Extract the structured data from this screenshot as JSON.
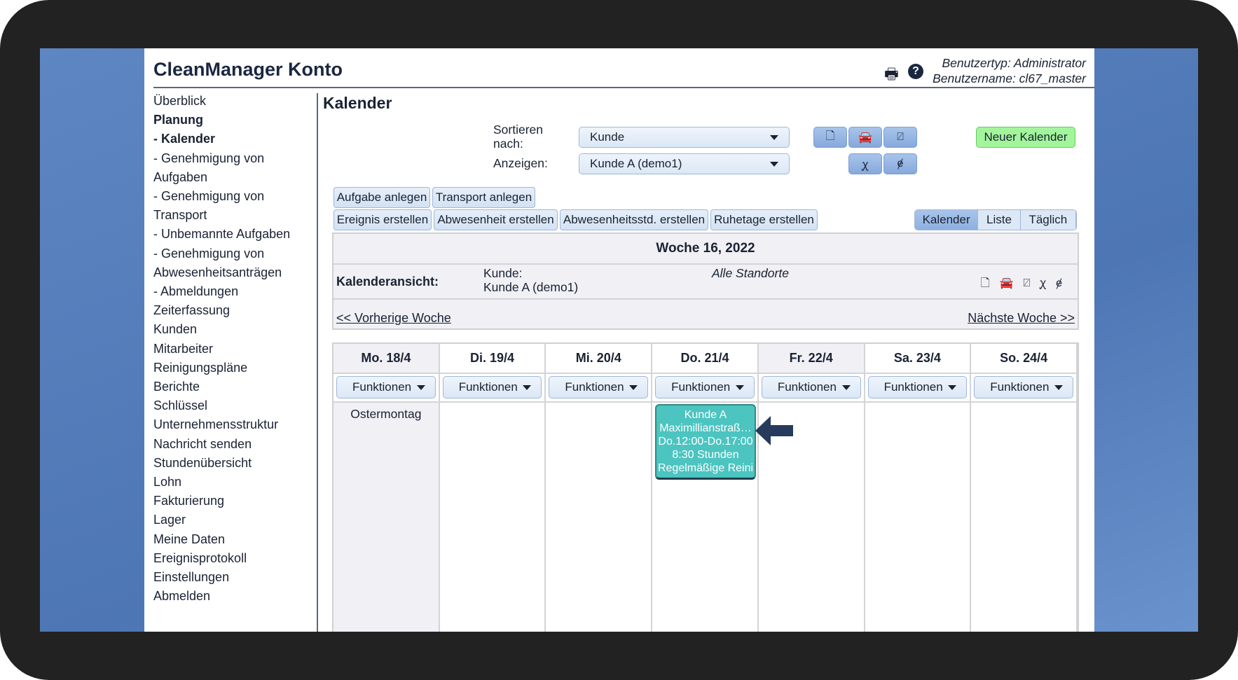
{
  "header": {
    "title": "CleanManager Konto",
    "user_type": "Benutzertyp: Administrator",
    "user_name": "Benutzername: cl67_master"
  },
  "sidebar": {
    "items": [
      {
        "label": "Überblick"
      },
      {
        "label": "Planung",
        "bold": true
      },
      {
        "label": "- Kalender",
        "bold": true,
        "active": true
      },
      {
        "label": "- Genehmigung von\n   Aufgaben"
      },
      {
        "label": "- Genehmigung von\n   Transport"
      },
      {
        "label": "- Unbemannte Aufgaben"
      },
      {
        "label": "- Genehmigung von\n   Abwesenheitsanträgen"
      },
      {
        "label": "- Abmeldungen"
      },
      {
        "label": "Zeiterfassung"
      },
      {
        "label": "Kunden"
      },
      {
        "label": "Mitarbeiter"
      },
      {
        "label": "Reinigungspläne"
      },
      {
        "label": "Berichte"
      },
      {
        "label": "Schlüssel"
      },
      {
        "label": "Unternehmensstruktur"
      },
      {
        "label": "Nachricht senden"
      },
      {
        "label": "Stundenübersicht"
      },
      {
        "label": "Lohn"
      },
      {
        "label": "Fakturierung"
      },
      {
        "label": "Lager"
      },
      {
        "label": "Meine Daten"
      },
      {
        "label": "Ereignisprotokoll"
      },
      {
        "label": "Einstellungen"
      },
      {
        "label": "Abmelden"
      }
    ]
  },
  "main": {
    "heading": "Kalender",
    "sort_label": "Sortieren\nnach:",
    "sort_value": "Kunde",
    "show_label": "Anzeigen:",
    "show_value": "Kunde A (demo1)",
    "new_calendar": "Neuer Kalender",
    "actions_row1": [
      "Aufgabe anlegen",
      "Transport anlegen"
    ],
    "actions_row2": [
      "Ereignis erstellen",
      "Abwesenheit erstellen",
      "Abwesenheitsstd. erstellen",
      "Ruhetage erstellen"
    ],
    "view_tabs": [
      "Kalender",
      "Liste",
      "Täglich"
    ],
    "active_view": "Kalender",
    "week_title": "Woche 16, 2022",
    "view_label": "Kalenderansicht:",
    "customer_label": "Kunde:",
    "customer_value": "Kunde A (demo1)",
    "locations": "Alle Standorte",
    "prev_week": "<< Vorherige Woche",
    "next_week": "Nächste Woche >>",
    "days": [
      {
        "label": "Mo. 18/4",
        "note": "Ostermontag"
      },
      {
        "label": "Di. 19/4"
      },
      {
        "label": "Mi. 20/4"
      },
      {
        "label": "Do. 21/4"
      },
      {
        "label": "Fr. 22/4"
      },
      {
        "label": "Sa. 23/4"
      },
      {
        "label": "So. 24/4"
      }
    ],
    "functions_label": "Funktionen",
    "event": {
      "lines": [
        "Kunde A",
        "Maximillianstraß…",
        "Do.12:00-Do.17:00",
        "8:30 Stunden",
        "Regelmäßige Reini"
      ],
      "color": "#4cc4c0"
    }
  }
}
